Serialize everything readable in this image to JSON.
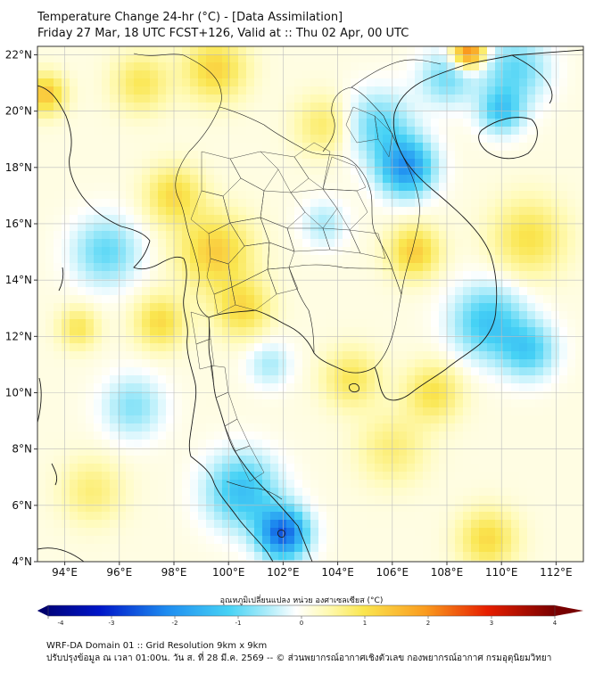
{
  "title": {
    "line1": "Temperature Change 24-hr (°C) - [Data Assimilation]",
    "line2": "Friday 27 Mar, 18 UTC FCST+126, Valid at :: Thu 02 Apr, 00 UTC"
  },
  "map": {
    "lat_labels": [
      "22°N",
      "20°N",
      "18°N",
      "16°N",
      "14°N",
      "12°N",
      "10°N",
      "8°N",
      "6°N",
      "4°N"
    ],
    "lon_labels": [
      "94°E",
      "96°E",
      "98°E",
      "100°E",
      "102°E",
      "104°E",
      "106°E",
      "108°E",
      "110°E",
      "112°E"
    ],
    "lat_values": [
      22,
      20,
      18,
      16,
      14,
      12,
      10,
      8,
      6,
      4
    ],
    "lon_values": [
      94,
      96,
      98,
      100,
      102,
      104,
      106,
      108,
      110,
      112
    ],
    "extent": {
      "lon_min": 93,
      "lon_max": 113,
      "lat_min": 4,
      "lat_max": 22.3
    },
    "field_centers": [
      {
        "lon": 102.0,
        "lat": 5.0,
        "value": -2.5,
        "spread": 0.9
      },
      {
        "lon": 100.5,
        "lat": 6.5,
        "value": -1.4,
        "spread": 1.3
      },
      {
        "lon": 106.5,
        "lat": 18.0,
        "value": -2.0,
        "spread": 1.0
      },
      {
        "lon": 105.5,
        "lat": 19.5,
        "value": -1.0,
        "spread": 1.2
      },
      {
        "lon": 108.0,
        "lat": 21.2,
        "value": -0.9,
        "spread": 1.0
      },
      {
        "lon": 110.5,
        "lat": 21.5,
        "value": -1.0,
        "spread": 1.2
      },
      {
        "lon": 110.0,
        "lat": 20.0,
        "value": -1.2,
        "spread": 0.8
      },
      {
        "lon": 109.5,
        "lat": 12.5,
        "value": -1.3,
        "spread": 1.3
      },
      {
        "lon": 111.0,
        "lat": 11.5,
        "value": -1.1,
        "spread": 1.0
      },
      {
        "lon": 95.5,
        "lat": 15.0,
        "value": -1.0,
        "spread": 1.2
      },
      {
        "lon": 96.5,
        "lat": 9.5,
        "value": -0.8,
        "spread": 1.1
      },
      {
        "lon": 103.5,
        "lat": 16.0,
        "value": -0.6,
        "spread": 0.8
      },
      {
        "lon": 101.5,
        "lat": 11.0,
        "value": -0.6,
        "spread": 0.8
      },
      {
        "lon": 99.5,
        "lat": 15.0,
        "value": 1.2,
        "spread": 1.3
      },
      {
        "lon": 98.0,
        "lat": 17.0,
        "value": 1.0,
        "spread": 1.0
      },
      {
        "lon": 100.5,
        "lat": 13.0,
        "value": 1.0,
        "spread": 1.0
      },
      {
        "lon": 97.5,
        "lat": 12.5,
        "value": 1.0,
        "spread": 0.9
      },
      {
        "lon": 94.5,
        "lat": 12.3,
        "value": 0.8,
        "spread": 0.7
      },
      {
        "lon": 93.3,
        "lat": 20.6,
        "value": 1.3,
        "spread": 0.7
      },
      {
        "lon": 99.5,
        "lat": 21.5,
        "value": 1.1,
        "spread": 1.1
      },
      {
        "lon": 96.8,
        "lat": 21.0,
        "value": 0.8,
        "spread": 1.0
      },
      {
        "lon": 108.8,
        "lat": 22.1,
        "value": 2.2,
        "spread": 0.6
      },
      {
        "lon": 106.8,
        "lat": 15.0,
        "value": 1.2,
        "spread": 0.9
      },
      {
        "lon": 104.5,
        "lat": 10.5,
        "value": 0.8,
        "spread": 1.0
      },
      {
        "lon": 111.0,
        "lat": 15.5,
        "value": 0.9,
        "spread": 1.3
      },
      {
        "lon": 107.5,
        "lat": 10.0,
        "value": 0.9,
        "spread": 1.0
      },
      {
        "lon": 109.5,
        "lat": 4.8,
        "value": 1.0,
        "spread": 1.0
      },
      {
        "lon": 106.0,
        "lat": 8.0,
        "value": 0.6,
        "spread": 1.2
      },
      {
        "lon": 95.0,
        "lat": 6.5,
        "value": 0.6,
        "spread": 1.1
      },
      {
        "lon": 103.5,
        "lat": 19.5,
        "value": 0.7,
        "spread": 1.0
      }
    ]
  },
  "colorbar": {
    "label": "อุณหภูมิเปลี่ยนแปลง หน่วย องศาเซลเซียส (°C)",
    "ticks": [
      "-4",
      "-3",
      "-2",
      "-1",
      "0",
      "1",
      "2",
      "3",
      "4"
    ],
    "min": -4,
    "max": 4
  },
  "footer": {
    "line1": "WRF-DA Domain 01 :: Grid Resolution 9km x 9km",
    "line2": "ปรับปรุงข้อมูล ณ เวลา 01:00น. วัน ส. ที่ 28 มี.ค. 2569 -- © ส่วนพยากรณ์อากาศเชิงตัวเลข กองพยากรณ์อากาศ กรมอุตุนิยมวิทยา"
  },
  "colors": {
    "land_outline": "#1a1a1a",
    "grid": "#bdbdbd",
    "frame": "#333333"
  }
}
